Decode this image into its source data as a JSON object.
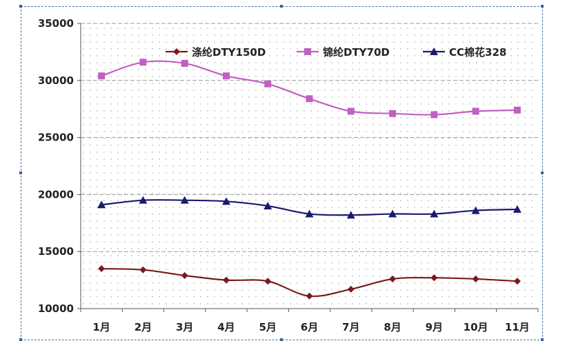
{
  "chart_data": {
    "type": "line",
    "categories": [
      "1月",
      "2月",
      "3月",
      "4月",
      "5月",
      "6月",
      "7月",
      "8月",
      "9月",
      "10月",
      "11月"
    ],
    "ylim": [
      10000,
      35000
    ],
    "yticks": [
      35000,
      30000,
      25000,
      20000,
      15000,
      10000
    ],
    "grid": true,
    "legend_position": "top",
    "series": [
      {
        "name": "涤纶DTY150D",
        "color": "#7a1a1a",
        "marker": "diamond",
        "values": [
          13500,
          13400,
          12900,
          12500,
          12400,
          11100,
          11700,
          12600,
          12700,
          12600,
          12400
        ]
      },
      {
        "name": "锦纶DTY70D",
        "color": "#c060c0",
        "marker": "square",
        "values": [
          30400,
          31600,
          31500,
          30400,
          29700,
          28400,
          27300,
          27100,
          27000,
          27300,
          27400
        ]
      },
      {
        "name": "CC棉花328",
        "color": "#1a1a6e",
        "marker": "triangle",
        "values": [
          19100,
          19500,
          19500,
          19400,
          19000,
          18300,
          18200,
          18300,
          18300,
          18600,
          18700
        ]
      }
    ]
  }
}
